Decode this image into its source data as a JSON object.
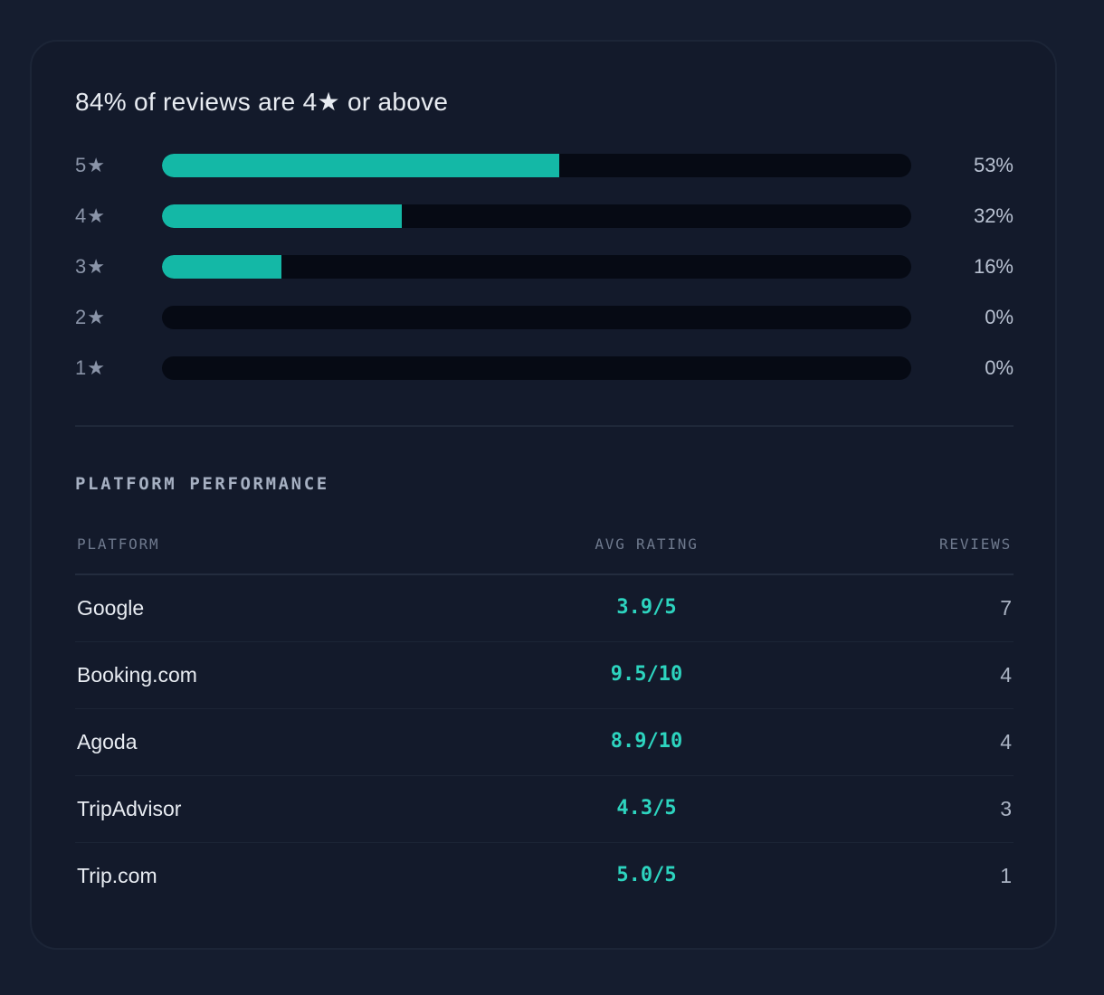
{
  "headline": "84% of reviews are 4★ or above",
  "distribution": [
    {
      "stars": "5",
      "star_icon": "★",
      "percent": 53,
      "percent_label": "53%"
    },
    {
      "stars": "4",
      "star_icon": "★",
      "percent": 32,
      "percent_label": "32%"
    },
    {
      "stars": "3",
      "star_icon": "★",
      "percent": 16,
      "percent_label": "16%"
    },
    {
      "stars": "2",
      "star_icon": "★",
      "percent": 0,
      "percent_label": "0%"
    },
    {
      "stars": "1",
      "star_icon": "★",
      "percent": 0,
      "percent_label": "0%"
    }
  ],
  "platform_section": {
    "title": "PLATFORM PERFORMANCE",
    "columns": {
      "platform": "PLATFORM",
      "rating": "AVG RATING",
      "reviews": "REVIEWS"
    },
    "rows": [
      {
        "platform": "Google",
        "rating": "3.9/5",
        "reviews": "7"
      },
      {
        "platform": "Booking.com",
        "rating": "9.5/10",
        "reviews": "4"
      },
      {
        "platform": "Agoda",
        "rating": "8.9/10",
        "reviews": "4"
      },
      {
        "platform": "TripAdvisor",
        "rating": "4.3/5",
        "reviews": "3"
      },
      {
        "platform": "Trip.com",
        "rating": "5.0/5",
        "reviews": "1"
      }
    ]
  },
  "colors": {
    "accent": "#14b8a6",
    "rating_text": "#2dd4bf",
    "background": "#151d2f",
    "card": "#131a2b"
  }
}
